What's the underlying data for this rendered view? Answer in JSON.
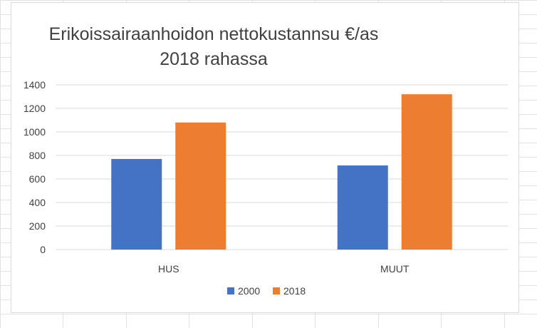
{
  "colors": {
    "series_2000": "#4472c4",
    "series_2018": "#ed7d31",
    "gridline": "#d9d9d9",
    "text": "#404040"
  },
  "chart_data": {
    "type": "bar",
    "title_line1": "Erikoissairaanhoidon nettokustannsu €/as",
    "title_line2": "2018 rahassa",
    "categories": [
      "HUS",
      "MUUT"
    ],
    "series": [
      {
        "name": "2000",
        "values": [
          770,
          715
        ]
      },
      {
        "name": "2018",
        "values": [
          1080,
          1320
        ]
      }
    ],
    "ylim": [
      0,
      1400
    ],
    "yticks": [
      0,
      200,
      400,
      600,
      800,
      1000,
      1200,
      1400
    ],
    "grid": true,
    "legend_position": "bottom"
  }
}
